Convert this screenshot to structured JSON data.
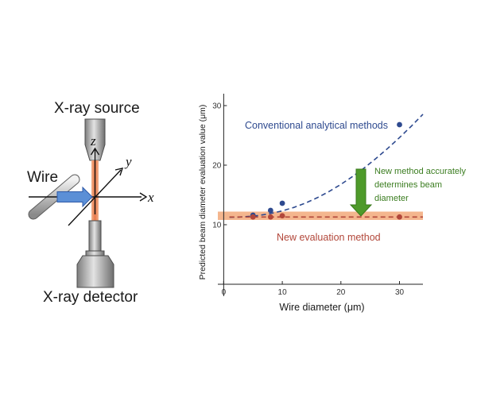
{
  "apparatus": {
    "source_label": "X-ray source",
    "detector_label": "X-ray detector",
    "wire_label": "Wire",
    "axis_z": "z",
    "axis_y": "y",
    "axis_x": "x"
  },
  "colors": {
    "conventional": "#2e4a8f",
    "new_method": "#b2473a",
    "band": "#f2a97a",
    "arrow_green": "#4e9a2a",
    "annotation_green": "#3b7d20",
    "beam": "#e8784a",
    "probe_arrow": "#5b8fd6"
  },
  "chart_data": {
    "type": "line",
    "xlabel": "Wire diameter (μm)",
    "ylabel": "Predicted beam diameter evaluation value (μm)",
    "xlim": [
      -1,
      34
    ],
    "ylim": [
      -2,
      32
    ],
    "x_ticks": [
      0,
      10,
      20,
      30
    ],
    "y_ticks": [
      10,
      20,
      30
    ],
    "grid": false,
    "band": {
      "y_low": 10.8,
      "y_high": 12.2
    },
    "series": [
      {
        "name": "Conventional analytical methods",
        "style": "dashed",
        "curve_x": [
          1.0,
          2.5,
          4.0,
          5.5,
          7.0,
          8.5,
          10.0,
          12.0,
          14.0,
          16.0,
          18.0,
          20.0,
          22.0,
          24.0,
          26.0,
          28.0,
          30.0,
          32.0,
          34.0
        ],
        "curve_y": [
          11.25,
          11.28,
          11.37,
          11.5,
          11.71,
          11.98,
          12.32,
          12.91,
          13.65,
          14.55,
          15.59,
          16.78,
          18.1,
          19.55,
          21.13,
          22.82,
          24.62,
          26.53,
          28.55
        ],
        "points_x": [
          5,
          8,
          10,
          30
        ],
        "points_y": [
          11.6,
          12.4,
          13.6,
          26.8
        ]
      },
      {
        "name": "New evaluation method",
        "style": "dashed",
        "curve_x": [
          1.0,
          34.0
        ],
        "curve_y": [
          11.3,
          11.3
        ],
        "points_x": [
          5,
          8,
          10,
          30
        ],
        "points_y": [
          11.3,
          11.3,
          11.5,
          11.3
        ]
      }
    ],
    "annotation": [
      "New method accurately",
      "determines beam",
      "diameter"
    ]
  }
}
